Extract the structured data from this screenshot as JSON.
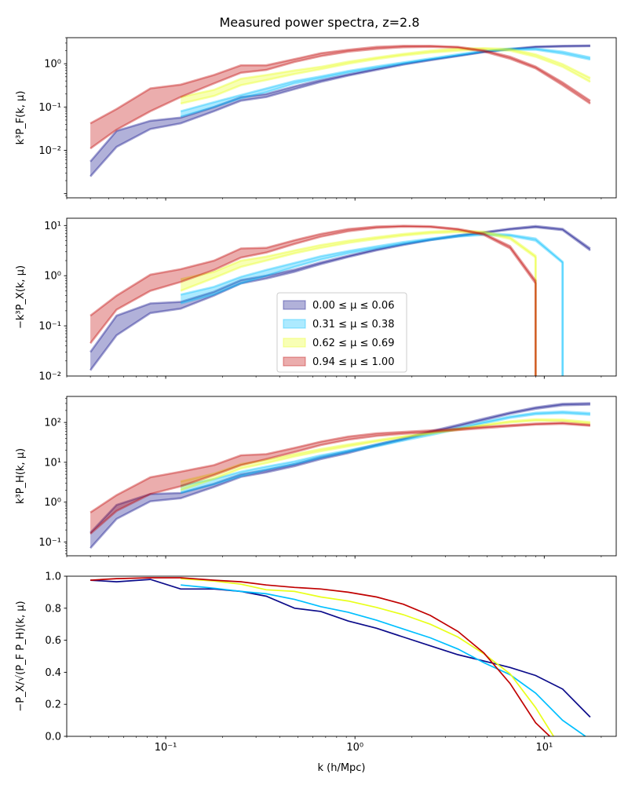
{
  "figure_title": "Measured power spectra, z=2.8",
  "colors": {
    "mu0": "#0b0b8a",
    "mu1": "#00bfff",
    "mu2": "#e8ff1a",
    "mu3": "#c00000"
  },
  "chart_data": [
    {
      "type": "area",
      "name": "panel-PF",
      "ylabel": "k³P_F(k, μ)",
      "yscale": "log",
      "ylim": [
        0.0008,
        4
      ],
      "xscale": "log",
      "xlim": [
        0.03,
        24
      ],
      "yticks": [
        {
          "v": 0.01,
          "label": "10⁻²"
        },
        {
          "v": 0.1,
          "label": "10⁻¹"
        },
        {
          "v": 1,
          "label": "10⁰"
        }
      ],
      "series": [
        {
          "name": "mu0",
          "x": [
            0.04,
            0.055,
            0.083,
            0.12,
            0.18,
            0.25,
            0.34,
            0.48,
            0.66,
            0.92,
            1.3,
            1.8,
            2.5,
            3.5,
            4.8,
            6.6,
            9.0,
            12.5,
            17.5
          ],
          "lo": [
            0.0025,
            0.012,
            0.031,
            0.042,
            0.08,
            0.14,
            0.17,
            0.26,
            0.38,
            0.53,
            0.72,
            0.95,
            1.2,
            1.5,
            1.85,
            2.15,
            2.4,
            2.5,
            2.55
          ],
          "hi": [
            0.0055,
            0.028,
            0.048,
            0.057,
            0.1,
            0.17,
            0.2,
            0.3,
            0.42,
            0.57,
            0.77,
            1.0,
            1.25,
            1.55,
            1.9,
            2.2,
            2.5,
            2.6,
            2.65
          ]
        },
        {
          "name": "mu1",
          "x": [
            0.12,
            0.18,
            0.25,
            0.34,
            0.48,
            0.66,
            0.92,
            1.3,
            1.8,
            2.5,
            3.5,
            4.8,
            6.6,
            9.0,
            12.5,
            17.5
          ],
          "lo": [
            0.06,
            0.1,
            0.16,
            0.22,
            0.35,
            0.46,
            0.62,
            0.8,
            1.0,
            1.25,
            1.55,
            1.9,
            2.1,
            2.1,
            1.7,
            1.25
          ],
          "hi": [
            0.08,
            0.13,
            0.19,
            0.27,
            0.4,
            0.51,
            0.68,
            0.87,
            1.08,
            1.33,
            1.65,
            2.0,
            2.25,
            2.25,
            1.9,
            1.4
          ]
        },
        {
          "name": "mu2",
          "x": [
            0.12,
            0.18,
            0.25,
            0.34,
            0.48,
            0.66,
            0.92,
            1.3,
            1.8,
            2.5,
            3.5,
            4.8,
            6.6,
            9.0,
            12.5,
            17.5
          ],
          "lo": [
            0.12,
            0.18,
            0.32,
            0.42,
            0.58,
            0.75,
            1.0,
            1.28,
            1.55,
            1.8,
            2.0,
            2.15,
            2.0,
            1.45,
            0.85,
            0.38
          ],
          "hi": [
            0.17,
            0.25,
            0.45,
            0.55,
            0.7,
            0.85,
            1.12,
            1.4,
            1.7,
            2.0,
            2.25,
            2.3,
            2.2,
            1.65,
            0.98,
            0.47
          ]
        },
        {
          "name": "mu3",
          "x": [
            0.04,
            0.055,
            0.083,
            0.12,
            0.18,
            0.25,
            0.34,
            0.48,
            0.66,
            0.92,
            1.3,
            1.8,
            2.5,
            3.5,
            4.8,
            6.6,
            9.0,
            12.5,
            17.5
          ],
          "lo": [
            0.011,
            0.03,
            0.08,
            0.17,
            0.35,
            0.62,
            0.72,
            1.1,
            1.5,
            1.9,
            2.2,
            2.4,
            2.45,
            2.35,
            1.9,
            1.3,
            0.78,
            0.32,
            0.12
          ],
          "hi": [
            0.042,
            0.09,
            0.27,
            0.33,
            0.55,
            0.92,
            0.92,
            1.28,
            1.75,
            2.1,
            2.45,
            2.6,
            2.6,
            2.45,
            2.05,
            1.45,
            0.86,
            0.37,
            0.14
          ]
        }
      ]
    },
    {
      "type": "area",
      "name": "panel-PX",
      "ylabel": "−k³P_X(k, μ)",
      "yscale": "log",
      "ylim": [
        0.01,
        14
      ],
      "xscale": "log",
      "xlim": [
        0.03,
        24
      ],
      "yticks": [
        {
          "v": 0.01,
          "label": "10⁻²"
        },
        {
          "v": 0.1,
          "label": "10⁻¹"
        },
        {
          "v": 1,
          "label": "10⁰"
        },
        {
          "v": 10,
          "label": "10¹"
        }
      ],
      "series": [
        {
          "name": "mu0",
          "x": [
            0.04,
            0.055,
            0.083,
            0.12,
            0.18,
            0.25,
            0.34,
            0.48,
            0.66,
            0.92,
            1.3,
            1.8,
            2.5,
            3.5,
            4.8,
            6.6,
            9.0,
            12.5,
            17.5
          ],
          "lo": [
            0.013,
            0.065,
            0.18,
            0.22,
            0.4,
            0.7,
            0.88,
            1.2,
            1.7,
            2.35,
            3.2,
            4.1,
            5.1,
            6.1,
            7.1,
            8.3,
            9.2,
            8.1,
            3.2
          ],
          "hi": [
            0.03,
            0.16,
            0.28,
            0.3,
            0.48,
            0.82,
            1.0,
            1.32,
            1.85,
            2.5,
            3.4,
            4.3,
            5.3,
            6.4,
            7.4,
            8.7,
            9.8,
            8.6,
            3.5
          ]
        },
        {
          "name": "mu1",
          "x": [
            0.12,
            0.18,
            0.25,
            0.34,
            0.48,
            0.66,
            0.92,
            1.3,
            1.8,
            2.5,
            3.5,
            4.8,
            6.6,
            9.0,
            12.5,
            12.5
          ],
          "lo": [
            0.28,
            0.42,
            0.7,
            1.0,
            1.5,
            2.1,
            2.8,
            3.5,
            4.3,
            5.1,
            6.0,
            6.5,
            6.2,
            5.0,
            1.8,
            0.008
          ],
          "hi": [
            0.42,
            0.6,
            0.95,
            1.3,
            1.8,
            2.45,
            3.1,
            3.85,
            4.7,
            5.5,
            6.4,
            7.0,
            6.6,
            5.5,
            1.9,
            0.008
          ]
        },
        {
          "name": "mu2",
          "x": [
            0.12,
            0.18,
            0.25,
            0.34,
            0.48,
            0.66,
            0.92,
            1.3,
            1.8,
            2.5,
            3.5,
            4.8,
            6.6,
            9.0,
            9.0
          ],
          "lo": [
            0.5,
            0.9,
            1.5,
            2.0,
            2.8,
            3.6,
            4.5,
            5.4,
            6.3,
            7.0,
            7.4,
            7.0,
            5.4,
            2.3,
            0.008
          ],
          "hi": [
            0.85,
            1.2,
            2.0,
            2.4,
            3.2,
            4.1,
            5.0,
            5.9,
            6.8,
            7.6,
            8.0,
            7.6,
            5.9,
            2.5,
            0.008
          ]
        },
        {
          "name": "mu3",
          "x": [
            0.04,
            0.055,
            0.083,
            0.12,
            0.18,
            0.25,
            0.34,
            0.48,
            0.66,
            0.92,
            1.3,
            1.8,
            2.5,
            3.5,
            4.8,
            6.6,
            9.0,
            9.0
          ],
          "lo": [
            0.045,
            0.21,
            0.5,
            0.75,
            1.3,
            2.3,
            2.9,
            4.3,
            6.0,
            7.7,
            9.0,
            9.5,
            9.3,
            8.2,
            6.5,
            3.5,
            0.7,
            0.008
          ],
          "hi": [
            0.16,
            0.4,
            1.05,
            1.35,
            2.0,
            3.5,
            3.6,
            5.1,
            6.8,
            8.5,
            9.6,
            9.9,
            9.7,
            8.6,
            6.9,
            3.9,
            0.8,
            0.008
          ]
        }
      ],
      "legend": {
        "placement": "center",
        "entries": [
          {
            "series": "mu0",
            "label": "0.00 ≤ μ ≤ 0.06"
          },
          {
            "series": "mu1",
            "label": "0.31 ≤ μ ≤ 0.38"
          },
          {
            "series": "mu2",
            "label": "0.62 ≤ μ ≤ 0.69"
          },
          {
            "series": "mu3",
            "label": "0.94 ≤ μ ≤ 1.00"
          }
        ]
      }
    },
    {
      "type": "area",
      "name": "panel-PH",
      "ylabel": "k³P_H(k, μ)",
      "yscale": "log",
      "ylim": [
        0.045,
        450
      ],
      "xscale": "log",
      "xlim": [
        0.03,
        24
      ],
      "yticks": [
        {
          "v": 0.1,
          "label": "10⁻¹"
        },
        {
          "v": 1,
          "label": "10⁰"
        },
        {
          "v": 10,
          "label": "10¹"
        },
        {
          "v": 100,
          "label": "10²"
        }
      ],
      "series": [
        {
          "name": "mu0",
          "x": [
            0.04,
            0.055,
            0.083,
            0.12,
            0.18,
            0.25,
            0.34,
            0.48,
            0.66,
            0.92,
            1.3,
            1.8,
            2.5,
            3.5,
            4.8,
            6.6,
            9.0,
            12.5,
            17.5
          ],
          "lo": [
            0.07,
            0.38,
            1.05,
            1.25,
            2.4,
            4.3,
            5.6,
            8.0,
            12.0,
            17.0,
            26.0,
            37.0,
            55.0,
            80.0,
            115.0,
            165.0,
            220.0,
            270.0,
            280.0
          ],
          "hi": [
            0.17,
            0.85,
            1.6,
            1.7,
            2.9,
            5.0,
            6.4,
            9.0,
            13.5,
            19.0,
            28.0,
            40.0,
            60.0,
            87.0,
            125.0,
            178.0,
            240.0,
            295.0,
            305.0
          ]
        },
        {
          "name": "mu1",
          "x": [
            0.12,
            0.18,
            0.25,
            0.34,
            0.48,
            0.66,
            0.92,
            1.3,
            1.8,
            2.5,
            3.5,
            4.8,
            6.6,
            9.0,
            12.5,
            17.5
          ],
          "lo": [
            1.7,
            2.8,
            4.5,
            6.5,
            9.0,
            13.0,
            18.0,
            25.0,
            35.0,
            48.0,
            68.0,
            95.0,
            130.0,
            160.0,
            170.0,
            155.0
          ],
          "hi": [
            2.6,
            3.8,
            5.8,
            7.8,
            10.5,
            15.0,
            20.0,
            28.0,
            39.0,
            53.0,
            74.0,
            104.0,
            142.0,
            175.0,
            188.0,
            172.0
          ]
        },
        {
          "name": "mu2",
          "x": [
            0.12,
            0.18,
            0.25,
            0.34,
            0.48,
            0.66,
            0.92,
            1.3,
            1.8,
            2.5,
            3.5,
            4.8,
            6.6,
            9.0,
            12.5,
            17.5
          ],
          "lo": [
            2.0,
            3.8,
            7.0,
            9.5,
            14.0,
            19.0,
            25.0,
            33.0,
            42.0,
            52.0,
            65.0,
            82.0,
            100.0,
            110.0,
            108.0,
            92.0
          ],
          "hi": [
            3.3,
            5.2,
            9.0,
            11.5,
            16.0,
            21.5,
            28.0,
            36.0,
            45.0,
            56.0,
            70.0,
            88.0,
            108.0,
            120.0,
            118.0,
            102.0
          ]
        },
        {
          "name": "mu3",
          "x": [
            0.04,
            0.055,
            0.083,
            0.12,
            0.18,
            0.25,
            0.34,
            0.48,
            0.66,
            0.92,
            1.3,
            1.8,
            2.5,
            3.5,
            4.8,
            6.6,
            9.0,
            12.5,
            17.5
          ],
          "lo": [
            0.16,
            0.6,
            1.6,
            2.5,
            4.8,
            8.5,
            12.0,
            18.0,
            27.0,
            37.0,
            46.0,
            52.0,
            57.0,
            64.0,
            72.0,
            80.0,
            88.0,
            92.0,
            82.0
          ],
          "hi": [
            0.55,
            1.5,
            4.2,
            5.8,
            8.5,
            15.0,
            16.0,
            23.0,
            33.0,
            44.0,
            53.0,
            58.0,
            63.0,
            70.0,
            78.0,
            86.0,
            94.0,
            99.0,
            88.0
          ]
        }
      ]
    },
    {
      "type": "line",
      "name": "panel-ratio",
      "ylabel": "−P_X/√(P_F P_H)(k, μ)",
      "xlabel": "k (h/Mpc)",
      "yscale": "linear",
      "ylim": [
        0,
        1
      ],
      "xscale": "log",
      "xlim": [
        0.03,
        24
      ],
      "yticks": [
        {
          "v": 0.0,
          "label": "0.0"
        },
        {
          "v": 0.2,
          "label": "0.2"
        },
        {
          "v": 0.4,
          "label": "0.4"
        },
        {
          "v": 0.6,
          "label": "0.6"
        },
        {
          "v": 0.8,
          "label": "0.8"
        },
        {
          "v": 1.0,
          "label": "1.0"
        }
      ],
      "xticks": [
        {
          "v": 0.1,
          "label": "10⁻¹"
        },
        {
          "v": 1,
          "label": "10⁰"
        },
        {
          "v": 10,
          "label": "10¹"
        }
      ],
      "series": [
        {
          "name": "mu0",
          "x": [
            0.04,
            0.055,
            0.083,
            0.12,
            0.18,
            0.25,
            0.34,
            0.48,
            0.66,
            0.92,
            1.3,
            1.8,
            2.5,
            3.5,
            4.8,
            6.6,
            9.0,
            12.5,
            17.5
          ],
          "y": [
            0.975,
            0.965,
            0.98,
            0.92,
            0.92,
            0.905,
            0.875,
            0.8,
            0.78,
            0.72,
            0.675,
            0.62,
            0.565,
            0.51,
            0.47,
            0.43,
            0.38,
            0.295,
            0.12
          ]
        },
        {
          "name": "mu1",
          "x": [
            0.12,
            0.18,
            0.25,
            0.34,
            0.48,
            0.66,
            0.92,
            1.3,
            1.8,
            2.5,
            3.5,
            4.8,
            6.6,
            9.0,
            12.5,
            16.5
          ],
          "y": [
            0.945,
            0.925,
            0.905,
            0.89,
            0.855,
            0.81,
            0.775,
            0.725,
            0.67,
            0.615,
            0.545,
            0.46,
            0.385,
            0.27,
            0.1,
            0.0
          ]
        },
        {
          "name": "mu2",
          "x": [
            0.12,
            0.18,
            0.25,
            0.34,
            0.48,
            0.66,
            0.92,
            1.3,
            1.8,
            2.5,
            3.5,
            4.8,
            6.6,
            9.0,
            11.2
          ],
          "y": [
            0.985,
            0.97,
            0.95,
            0.915,
            0.905,
            0.87,
            0.845,
            0.805,
            0.76,
            0.7,
            0.62,
            0.515,
            0.39,
            0.18,
            0.0
          ]
        },
        {
          "name": "mu3",
          "x": [
            0.04,
            0.055,
            0.083,
            0.12,
            0.18,
            0.25,
            0.34,
            0.48,
            0.66,
            0.92,
            1.3,
            1.8,
            2.5,
            3.5,
            4.8,
            6.6,
            9.0,
            10.7
          ],
          "y": [
            0.975,
            0.985,
            0.99,
            0.99,
            0.975,
            0.965,
            0.945,
            0.93,
            0.92,
            0.9,
            0.87,
            0.825,
            0.755,
            0.655,
            0.52,
            0.33,
            0.085,
            0.0
          ]
        }
      ]
    }
  ]
}
